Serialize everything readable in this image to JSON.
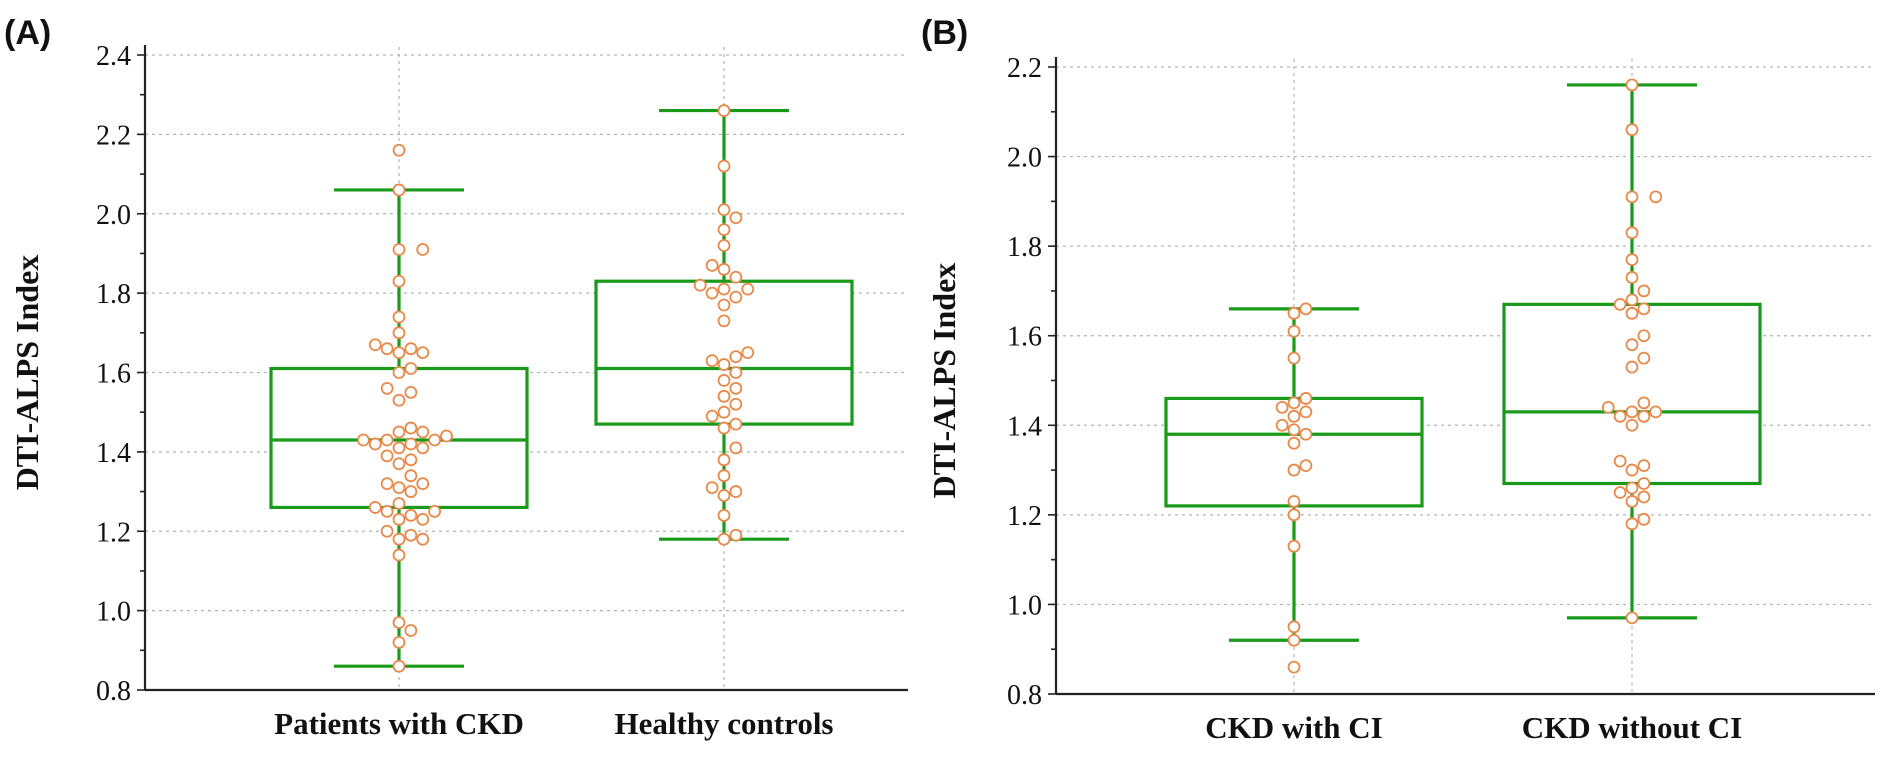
{
  "chart_data": [
    {
      "panel_label": "(A)",
      "type": "box",
      "ylabel": "DTI-ALPS Index",
      "ylim": [
        0.8,
        2.4
      ],
      "yticks": [
        "0.8",
        "1.0",
        "1.2",
        "1.4",
        "1.6",
        "1.8",
        "2.0",
        "2.2",
        "2.4"
      ],
      "grid": true,
      "box_color": "#1a9a1a",
      "point_color": "#e8894a",
      "groups": [
        {
          "name": "Patients with CKD",
          "whisker_low": 0.86,
          "q1": 1.26,
          "median": 1.43,
          "q3": 1.61,
          "whisker_high": 2.06,
          "points": [
            0.86,
            0.92,
            0.95,
            0.97,
            1.14,
            1.18,
            1.18,
            1.19,
            1.2,
            1.23,
            1.23,
            1.24,
            1.25,
            1.25,
            1.26,
            1.27,
            1.3,
            1.31,
            1.32,
            1.32,
            1.34,
            1.37,
            1.38,
            1.39,
            1.41,
            1.41,
            1.42,
            1.42,
            1.43,
            1.43,
            1.43,
            1.44,
            1.45,
            1.45,
            1.46,
            1.53,
            1.55,
            1.56,
            1.6,
            1.61,
            1.65,
            1.65,
            1.66,
            1.66,
            1.67,
            1.7,
            1.74,
            1.83,
            1.91,
            1.91,
            2.06,
            2.16
          ]
        },
        {
          "name": "Healthy controls",
          "whisker_low": 1.18,
          "q1": 1.47,
          "median": 1.61,
          "q3": 1.83,
          "whisker_high": 2.26,
          "points": [
            1.18,
            1.19,
            1.24,
            1.29,
            1.3,
            1.31,
            1.34,
            1.38,
            1.41,
            1.46,
            1.47,
            1.49,
            1.5,
            1.52,
            1.54,
            1.56,
            1.58,
            1.6,
            1.62,
            1.63,
            1.64,
            1.65,
            1.73,
            1.77,
            1.79,
            1.8,
            1.81,
            1.81,
            1.82,
            1.84,
            1.86,
            1.87,
            1.92,
            1.96,
            1.99,
            2.01,
            2.12,
            2.26
          ]
        }
      ]
    },
    {
      "panel_label": "(B)",
      "type": "box",
      "ylabel": "DTI-ALPS Index",
      "ylim": [
        0.8,
        2.2
      ],
      "yticks": [
        "0.8",
        "1.0",
        "1.2",
        "1.4",
        "1.6",
        "1.8",
        "2.0",
        "2.2"
      ],
      "grid": true,
      "box_color": "#1a9a1a",
      "point_color": "#e8894a",
      "groups": [
        {
          "name": "CKD with CI",
          "whisker_low": 0.92,
          "q1": 1.22,
          "median": 1.38,
          "q3": 1.46,
          "whisker_high": 1.66,
          "points": [
            0.86,
            0.92,
            0.95,
            1.13,
            1.2,
            1.23,
            1.3,
            1.31,
            1.36,
            1.38,
            1.39,
            1.4,
            1.42,
            1.43,
            1.44,
            1.45,
            1.46,
            1.55,
            1.61,
            1.65,
            1.66
          ]
        },
        {
          "name": "CKD without CI",
          "whisker_low": 0.97,
          "q1": 1.27,
          "median": 1.43,
          "q3": 1.67,
          "whisker_high": 2.16,
          "points": [
            0.97,
            1.18,
            1.19,
            1.23,
            1.24,
            1.25,
            1.26,
            1.27,
            1.3,
            1.31,
            1.32,
            1.4,
            1.42,
            1.42,
            1.43,
            1.43,
            1.44,
            1.45,
            1.53,
            1.55,
            1.58,
            1.6,
            1.65,
            1.66,
            1.67,
            1.68,
            1.7,
            1.73,
            1.77,
            1.83,
            1.91,
            1.91,
            2.06,
            2.16
          ]
        }
      ]
    }
  ]
}
